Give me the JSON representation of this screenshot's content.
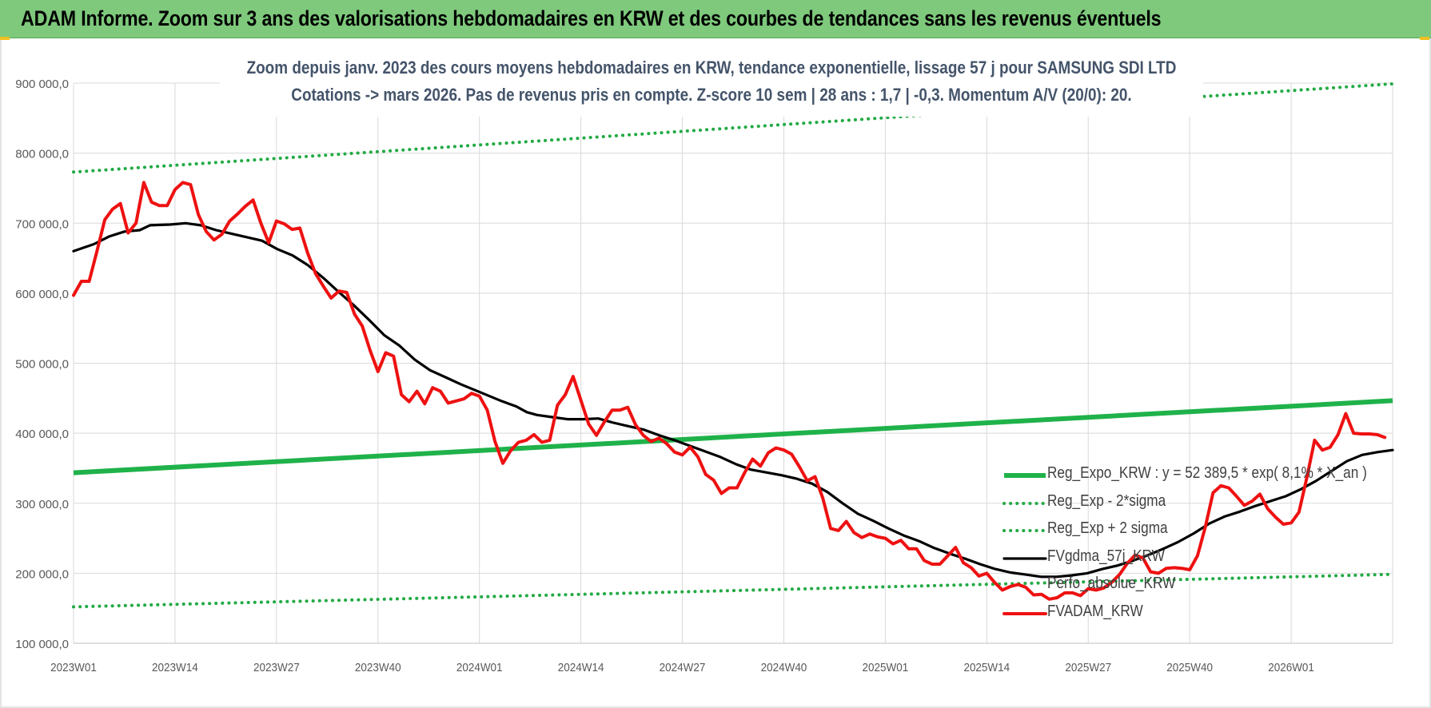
{
  "banner": {
    "title": "ADAM Informe. Zoom sur 3 ans des valorisations hebdomadaires en KRW et des courbes de tendances sans les revenus éventuels"
  },
  "chart_title": {
    "line1": "Zoom depuis janv. 2023 des cours moyens hebdomadaires en KRW, tendance exponentielle, lissage 57 j pour SAMSUNG SDI LTD",
    "line2": "Cotations -> mars 2026. Pas de revenus pris en compte. Z-score 10 sem | 28 ans : 1,7 | -0,3. Momentum A/V (20/0): 20."
  },
  "colors": {
    "banner_bg": "#7ec97c",
    "title_text": "#44546a",
    "trend_green": "#1fb24a",
    "sigma_green": "#22aa44",
    "smooth_black": "#000000",
    "price_red": "#ee1111",
    "grid": "#d9d9d9",
    "axis_text": "#595959"
  },
  "chart_data": {
    "type": "line",
    "x_ticks": [
      "2023W01",
      "2023W14",
      "2023W27",
      "2023W40",
      "2024W01",
      "2024W14",
      "2024W27",
      "2024W40",
      "2025W01",
      "2025W14",
      "2025W27",
      "2025W40",
      "2026W01"
    ],
    "y_ticks": [
      "100 000,0",
      "200 000,0",
      "300 000,0",
      "400 000,0",
      "500 000,0",
      "600 000,0",
      "700 000,0",
      "800 000,0",
      "900 000,0"
    ],
    "ylim": [
      100000,
      900000
    ],
    "n_weeks": 170,
    "grid": true,
    "legend_position": "bottom-right",
    "series": [
      {
        "name": "Reg_Expo_KRW : y = 52 389,5 * exp( 8,1% *  X_an )",
        "style": "thick-solid",
        "color": "#1fb24a",
        "points": [
          [
            0,
            343500
          ],
          [
            169,
            446500
          ]
        ]
      },
      {
        "name": "Reg_Exp - 2*sigma",
        "style": "dotted",
        "color": "#22aa44",
        "points": [
          [
            0,
            152000
          ],
          [
            169,
            198500
          ]
        ]
      },
      {
        "name": "Reg_Exp + 2 sigma",
        "style": "dotted",
        "color": "#22aa44",
        "points": [
          [
            0,
            773000
          ],
          [
            169,
            899000
          ]
        ]
      },
      {
        "name": "FVgdma_57j_KRW",
        "style": "solid",
        "color": "#000000",
        "points": [
          [
            0,
            660000
          ],
          [
            4,
            670000
          ],
          [
            7,
            681000
          ],
          [
            10,
            688000
          ],
          [
            13,
            690000
          ],
          [
            15,
            697000
          ],
          [
            19,
            698000
          ],
          [
            22,
            700000
          ],
          [
            25,
            697000
          ],
          [
            28,
            690000
          ],
          [
            31,
            685000
          ],
          [
            34,
            680000
          ],
          [
            37,
            675000
          ],
          [
            40,
            663000
          ],
          [
            43,
            654000
          ],
          [
            46,
            640000
          ],
          [
            49,
            622000
          ],
          [
            52,
            602000
          ],
          [
            55,
            583000
          ],
          [
            58,
            562000
          ],
          [
            61,
            540000
          ],
          [
            64,
            525000
          ],
          [
            67,
            505000
          ],
          [
            70,
            490000
          ],
          [
            73,
            480000
          ],
          [
            76,
            470000
          ],
          [
            80,
            458000
          ],
          [
            84,
            446000
          ],
          [
            87,
            438000
          ],
          [
            89,
            430000
          ],
          [
            91,
            426000
          ],
          [
            94,
            423000
          ],
          [
            97,
            420000
          ],
          [
            100,
            420000
          ],
          [
            103,
            421000
          ],
          [
            106,
            415000
          ],
          [
            109,
            410000
          ],
          [
            112,
            405000
          ],
          [
            115,
            397000
          ],
          [
            118,
            390000
          ],
          [
            121,
            382000
          ],
          [
            124,
            374000
          ],
          [
            127,
            366000
          ],
          [
            130,
            356000
          ],
          [
            133,
            348000
          ],
          [
            136,
            344000
          ],
          [
            139,
            340000
          ],
          [
            142,
            335000
          ],
          [
            145,
            328000
          ],
          [
            148,
            316000
          ],
          [
            151,
            300000
          ],
          [
            154,
            285000
          ],
          [
            157,
            275000
          ],
          [
            160,
            264000
          ],
          [
            163,
            254000
          ],
          [
            166,
            246000
          ],
          [
            169,
            236000
          ],
          [
            172,
            228000
          ],
          [
            175,
            221000
          ],
          [
            178,
            213000
          ],
          [
            181,
            206000
          ],
          [
            184,
            201000
          ],
          [
            187,
            198000
          ],
          [
            190,
            195000
          ],
          [
            193,
            195000
          ],
          [
            196,
            197000
          ],
          [
            199,
            200000
          ],
          [
            202,
            206000
          ],
          [
            205,
            211000
          ],
          [
            208,
            218000
          ],
          [
            211,
            226000
          ],
          [
            214,
            235000
          ],
          [
            217,
            245000
          ],
          [
            220,
            257000
          ],
          [
            223,
            271000
          ],
          [
            226,
            281000
          ],
          [
            229,
            288000
          ],
          [
            232,
            296000
          ],
          [
            235,
            303000
          ],
          [
            238,
            310000
          ],
          [
            241,
            320000
          ],
          [
            244,
            332000
          ],
          [
            247,
            346000
          ],
          [
            250,
            360000
          ],
          [
            253,
            369000
          ],
          [
            256,
            373000
          ],
          [
            259,
            376000
          ]
        ]
      },
      {
        "name": "Perfo_absolue_KRW",
        "style": "hidden",
        "color": "#7f7f7f",
        "points": []
      },
      {
        "name": "FVADAM_KRW",
        "style": "solid-thick",
        "color": "#ee1111",
        "points": [
          [
            0,
            597000
          ],
          [
            1,
            617000
          ],
          [
            2,
            617000
          ],
          [
            3,
            660000
          ],
          [
            4,
            705000
          ],
          [
            5,
            720000
          ],
          [
            6,
            728000
          ],
          [
            7,
            686000
          ],
          [
            8,
            700000
          ],
          [
            9,
            758000
          ],
          [
            10,
            730000
          ],
          [
            11,
            725000
          ],
          [
            12,
            725000
          ],
          [
            13,
            748000
          ],
          [
            14,
            758000
          ],
          [
            15,
            755000
          ],
          [
            16,
            712000
          ],
          [
            17,
            688000
          ],
          [
            18,
            676000
          ],
          [
            19,
            684000
          ],
          [
            20,
            703000
          ],
          [
            21,
            713000
          ],
          [
            22,
            724000
          ],
          [
            23,
            733000
          ],
          [
            24,
            700000
          ],
          [
            25,
            672000
          ],
          [
            26,
            703000
          ],
          [
            27,
            699000
          ],
          [
            28,
            691000
          ],
          [
            29,
            693000
          ],
          [
            30,
            657000
          ],
          [
            31,
            628000
          ],
          [
            32,
            610000
          ],
          [
            33,
            593000
          ],
          [
            34,
            603000
          ],
          [
            35,
            601000
          ],
          [
            36,
            570000
          ],
          [
            37,
            553000
          ],
          [
            38,
            518000
          ],
          [
            39,
            488000
          ],
          [
            40,
            515000
          ],
          [
            41,
            510000
          ],
          [
            42,
            455000
          ],
          [
            43,
            445000
          ],
          [
            44,
            460000
          ],
          [
            45,
            442000
          ],
          [
            46,
            465000
          ],
          [
            47,
            460000
          ],
          [
            48,
            443000
          ],
          [
            49,
            446000
          ],
          [
            50,
            449000
          ],
          [
            51,
            457000
          ],
          [
            52,
            453000
          ],
          [
            53,
            433000
          ],
          [
            54,
            388000
          ],
          [
            55,
            357000
          ],
          [
            56,
            375000
          ],
          [
            57,
            387000
          ],
          [
            58,
            390000
          ],
          [
            59,
            398000
          ],
          [
            60,
            387000
          ],
          [
            61,
            390000
          ],
          [
            62,
            440000
          ],
          [
            63,
            455000
          ],
          [
            64,
            481000
          ],
          [
            65,
            447000
          ],
          [
            66,
            413000
          ],
          [
            67,
            397000
          ],
          [
            68,
            416000
          ],
          [
            69,
            433000
          ],
          [
            70,
            433000
          ],
          [
            71,
            437000
          ],
          [
            72,
            412000
          ],
          [
            73,
            397000
          ],
          [
            74,
            388000
          ],
          [
            75,
            393000
          ],
          [
            76,
            385000
          ],
          [
            77,
            373000
          ],
          [
            78,
            369000
          ],
          [
            79,
            380000
          ],
          [
            80,
            366000
          ],
          [
            81,
            341000
          ],
          [
            82,
            333000
          ],
          [
            83,
            314000
          ],
          [
            84,
            322000
          ],
          [
            85,
            322000
          ],
          [
            86,
            344000
          ],
          [
            87,
            363000
          ],
          [
            88,
            353000
          ],
          [
            89,
            372000
          ],
          [
            90,
            379000
          ],
          [
            91,
            376000
          ],
          [
            92,
            370000
          ],
          [
            93,
            352000
          ],
          [
            94,
            332000
          ],
          [
            95,
            338000
          ],
          [
            96,
            307000
          ],
          [
            97,
            264000
          ],
          [
            98,
            261000
          ],
          [
            99,
            274000
          ],
          [
            100,
            258000
          ],
          [
            101,
            251000
          ],
          [
            102,
            256000
          ],
          [
            103,
            252000
          ],
          [
            104,
            250000
          ],
          [
            105,
            242000
          ],
          [
            106,
            247000
          ],
          [
            107,
            235000
          ],
          [
            108,
            235000
          ],
          [
            109,
            218000
          ],
          [
            110,
            213000
          ],
          [
            111,
            213000
          ],
          [
            112,
            225000
          ],
          [
            113,
            237000
          ],
          [
            114,
            215000
          ],
          [
            115,
            208000
          ],
          [
            116,
            196000
          ],
          [
            117,
            200000
          ],
          [
            118,
            187000
          ],
          [
            119,
            176000
          ],
          [
            120,
            181000
          ],
          [
            121,
            184000
          ],
          [
            122,
            180000
          ],
          [
            123,
            169000
          ],
          [
            124,
            170000
          ],
          [
            125,
            163000
          ],
          [
            126,
            165000
          ],
          [
            127,
            172000
          ],
          [
            128,
            172000
          ],
          [
            129,
            168000
          ],
          [
            130,
            178000
          ],
          [
            131,
            176000
          ],
          [
            132,
            179000
          ],
          [
            133,
            187000
          ],
          [
            134,
            198000
          ],
          [
            135,
            214000
          ],
          [
            136,
            226000
          ],
          [
            137,
            222000
          ],
          [
            138,
            202000
          ],
          [
            139,
            200000
          ],
          [
            140,
            207000
          ],
          [
            141,
            208000
          ],
          [
            142,
            207000
          ],
          [
            143,
            205000
          ],
          [
            144,
            225000
          ],
          [
            145,
            266000
          ],
          [
            146,
            315000
          ],
          [
            147,
            325000
          ],
          [
            148,
            322000
          ],
          [
            149,
            310000
          ],
          [
            150,
            297000
          ],
          [
            151,
            303000
          ],
          [
            152,
            313000
          ],
          [
            153,
            292000
          ],
          [
            154,
            280000
          ],
          [
            155,
            270000
          ],
          [
            156,
            272000
          ],
          [
            157,
            287000
          ],
          [
            158,
            336000
          ],
          [
            159,
            390000
          ],
          [
            160,
            376000
          ],
          [
            161,
            380000
          ],
          [
            162,
            398000
          ],
          [
            163,
            428000
          ],
          [
            164,
            400000
          ],
          [
            165,
            399000
          ],
          [
            166,
            399000
          ],
          [
            167,
            398000
          ],
          [
            168,
            394000
          ]
        ]
      }
    ]
  }
}
